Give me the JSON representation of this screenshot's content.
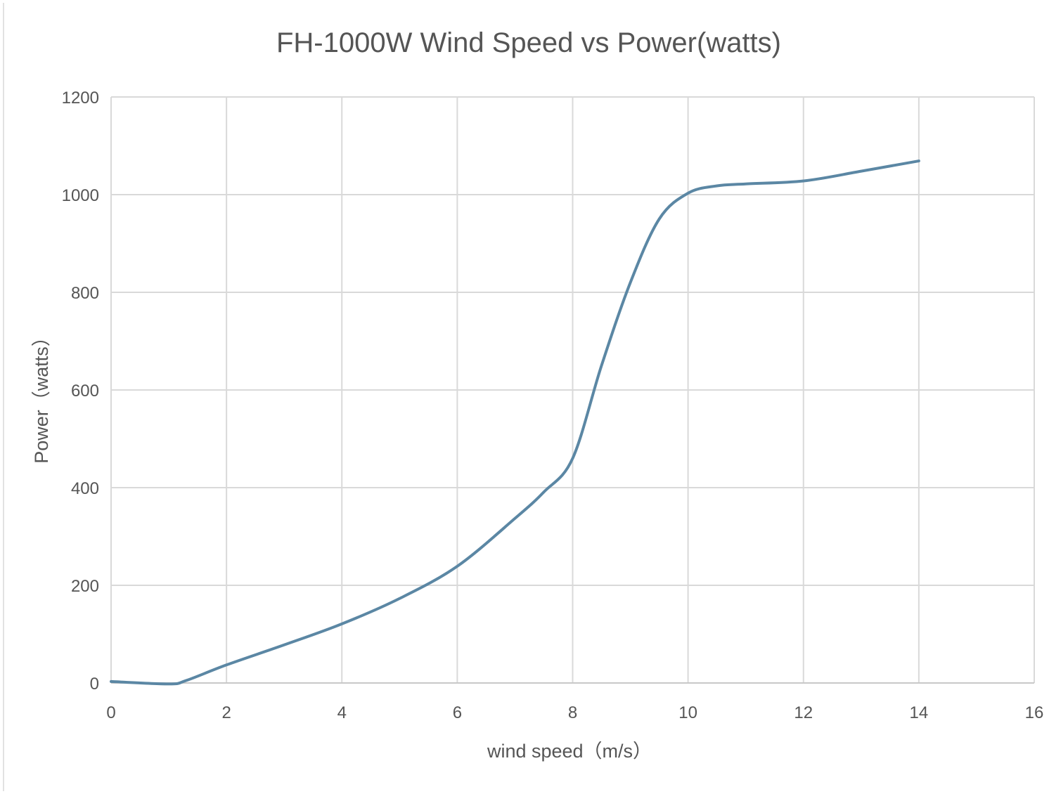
{
  "chart_data": {
    "type": "line",
    "title": "FH-1000W Wind Speed vs Power(watts)",
    "xlabel": "wind speed（m/s）",
    "ylabel": "Power（watts）",
    "xlim": [
      0,
      16
    ],
    "ylim": [
      0,
      1200
    ],
    "xticks": [
      0,
      2,
      4,
      6,
      8,
      10,
      12,
      14,
      16
    ],
    "yticks": [
      0,
      200,
      400,
      600,
      800,
      1000,
      1200
    ],
    "grid": true,
    "line_color": "#5b87a4",
    "series": [
      {
        "x": [
          0,
          1,
          1.3,
          2,
          3,
          4,
          5,
          6,
          7,
          7.5,
          8,
          8.5,
          9,
          9.5,
          10,
          10.5,
          11,
          12,
          13,
          14
        ],
        "y": [
          3,
          -2,
          5,
          37,
          78,
          121,
          173,
          239,
          337,
          391,
          460,
          650,
          820,
          950,
          1003,
          1018,
          1022,
          1028,
          1048,
          1069
        ]
      }
    ]
  }
}
